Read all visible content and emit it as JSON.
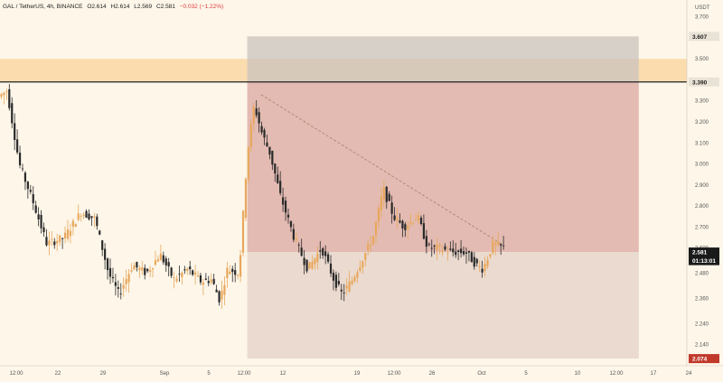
{
  "header": {
    "symbol": "GAL / TetherUS, 4h, BINANCE",
    "open": "O2.614",
    "high": "H2.614",
    "low": "L2.569",
    "close": "C2.581",
    "change": "−0.032 (−1.22%)"
  },
  "colors": {
    "background": "#fdf6e9",
    "up": "#e8a85c",
    "down": "#2a2a2a",
    "zone": "#fbd9a8",
    "target_box": "#c9c3bd",
    "stop_box": "#d9a79f",
    "profit_box": "#e6d3c8",
    "last_price_tag": "#1a1a1a",
    "stop_tag": "#c0392b"
  },
  "chart_data": {
    "type": "candlestick",
    "currency": "USDT",
    "ylim": [
      2.04,
      3.78
    ],
    "y_ticks": [
      "3.700",
      "3.600",
      "3.500",
      "3.400",
      "3.300",
      "3.200",
      "3.100",
      "3.000",
      "2.900",
      "2.800",
      "2.700",
      "2.600",
      "2.480",
      "2.360",
      "2.240",
      "2.140",
      "2.080"
    ],
    "x_ticks": [
      "12:00",
      "22",
      "29",
      "Sep",
      "5",
      "12:00",
      "12",
      "19",
      "12:00",
      "26",
      "Oct",
      "5",
      "10",
      "12:00",
      "17",
      "24"
    ],
    "price_tags": [
      {
        "label": "3.607",
        "value": 3.607,
        "style": "light"
      },
      {
        "label": "3.390",
        "value": 3.39,
        "style": "light"
      },
      {
        "label": "2.581",
        "value": 2.581,
        "style": "dark"
      },
      {
        "label": "01:13:01",
        "value": 2.54,
        "style": "dark"
      },
      {
        "label": "2.074",
        "value": 2.074,
        "style": "red"
      }
    ],
    "resistance_zone": [
      3.39,
      3.5
    ],
    "resistance_line": 3.39,
    "position": {
      "top": 3.607,
      "entry": 3.39,
      "current": 2.581,
      "bottom": 2.074,
      "x_start": 0.36,
      "x_end": 0.93
    },
    "trendline": [
      [
        0.38,
        3.33
      ],
      [
        0.73,
        2.62
      ]
    ],
    "anchors": [
      [
        0.0,
        3.32
      ],
      [
        0.012,
        3.35
      ],
      [
        0.03,
        3.0
      ],
      [
        0.05,
        2.82
      ],
      [
        0.07,
        2.62
      ],
      [
        0.095,
        2.65
      ],
      [
        0.12,
        2.77
      ],
      [
        0.14,
        2.74
      ],
      [
        0.16,
        2.48
      ],
      [
        0.175,
        2.38
      ],
      [
        0.195,
        2.52
      ],
      [
        0.215,
        2.48
      ],
      [
        0.235,
        2.57
      ],
      [
        0.255,
        2.45
      ],
      [
        0.275,
        2.5
      ],
      [
        0.295,
        2.44
      ],
      [
        0.31,
        2.45
      ],
      [
        0.322,
        2.35
      ],
      [
        0.333,
        2.5
      ],
      [
        0.35,
        2.48
      ],
      [
        0.362,
        3.05
      ],
      [
        0.372,
        3.28
      ],
      [
        0.383,
        3.15
      ],
      [
        0.395,
        3.05
      ],
      [
        0.41,
        2.85
      ],
      [
        0.43,
        2.65
      ],
      [
        0.45,
        2.5
      ],
      [
        0.47,
        2.6
      ],
      [
        0.488,
        2.45
      ],
      [
        0.5,
        2.38
      ],
      [
        0.515,
        2.45
      ],
      [
        0.53,
        2.55
      ],
      [
        0.545,
        2.65
      ],
      [
        0.56,
        2.88
      ],
      [
        0.575,
        2.75
      ],
      [
        0.59,
        2.7
      ],
      [
        0.61,
        2.75
      ],
      [
        0.625,
        2.6
      ],
      [
        0.64,
        2.6
      ],
      [
        0.66,
        2.58
      ],
      [
        0.68,
        2.58
      ],
      [
        0.695,
        2.52
      ],
      [
        0.705,
        2.5
      ],
      [
        0.72,
        2.62
      ],
      [
        0.735,
        2.6
      ]
    ]
  }
}
